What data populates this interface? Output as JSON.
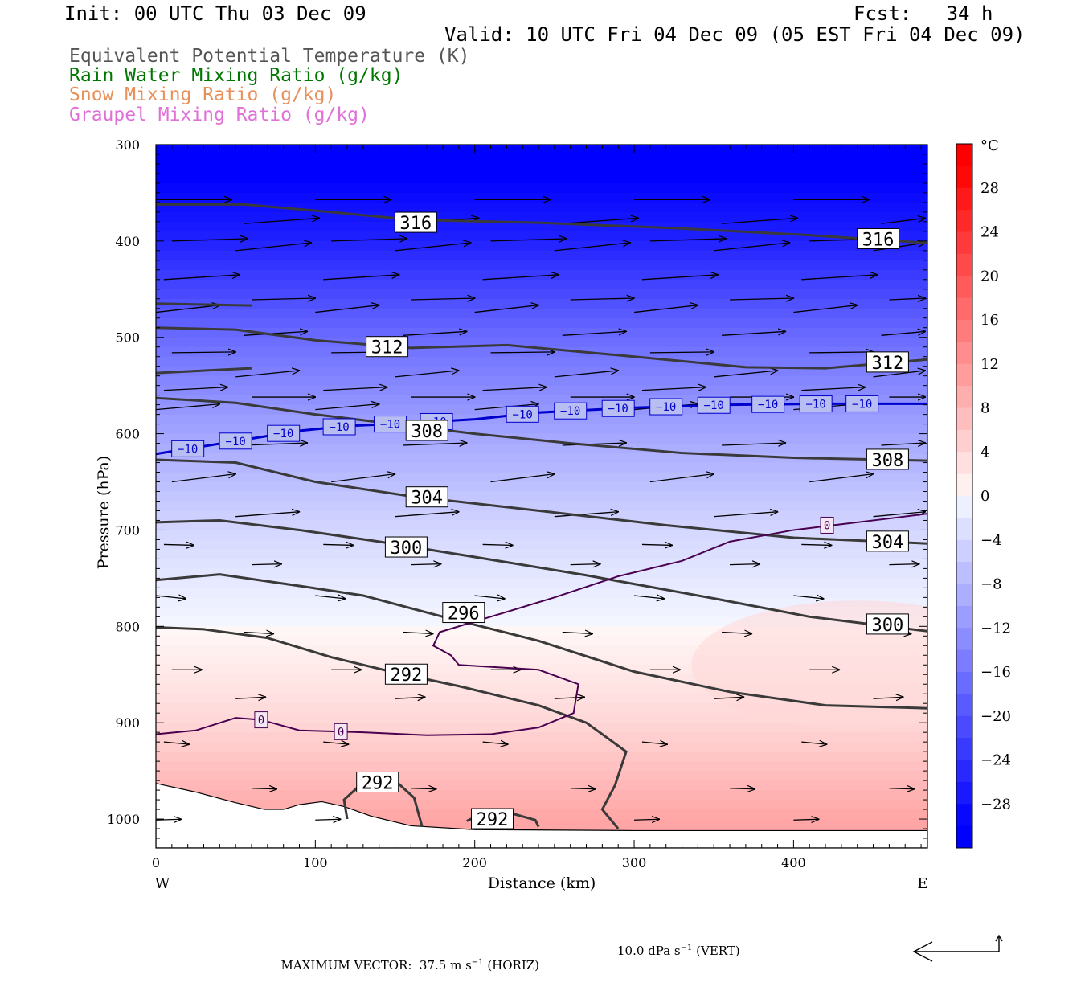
{
  "header": {
    "init": "Init: 00 UTC Thu 03 Dec 09",
    "fcst": "Fcst:   34 h",
    "valid": "Valid: 10 UTC Fri 04 Dec 09 (05 EST Fri 04 Dec 09)"
  },
  "fields": [
    {
      "label": "Equivalent Potential Temperature (K)",
      "color": "#555555"
    },
    {
      "label": "Rain Water Mixing Ratio (g/kg)",
      "color": "#007700"
    },
    {
      "label": "Snow Mixing Ratio (g/kg)",
      "color": "#e8905a"
    },
    {
      "label": "Graupel Mixing Ratio (g/kg)",
      "color": "#e070d8"
    }
  ],
  "chart_data": {
    "type": "heatmap",
    "title": "",
    "xlabel": "Distance (km)",
    "ylabel": "Pressure (hPa)",
    "xlim": [
      0,
      484
    ],
    "ylim": [
      1030,
      300
    ],
    "x_ticks": [
      0,
      100,
      200,
      300,
      400
    ],
    "y_ticks": [
      300,
      400,
      500,
      600,
      700,
      800,
      900,
      1000
    ],
    "x_end_labels": {
      "left": "W",
      "right": "E"
    },
    "colorbar": {
      "unit": "°C",
      "ticks": [
        28,
        24,
        20,
        16,
        12,
        8,
        4,
        0,
        -4,
        -8,
        -12,
        -16,
        -20,
        -24,
        -28
      ],
      "range": [
        -32,
        32
      ]
    },
    "temperature_field": [
      {
        "p": 300,
        "t": -32
      },
      {
        "p": 400,
        "t": -26
      },
      {
        "p": 500,
        "t": -17
      },
      {
        "p": 600,
        "t": -10
      },
      {
        "p": 700,
        "t": -4
      },
      {
        "p": 800,
        "t": 0
      },
      {
        "p": 900,
        "t": 4
      },
      {
        "p": 1000,
        "t": 10
      }
    ],
    "theta_e_contours": [
      {
        "value": 316,
        "label": "316",
        "points": [
          [
            0,
            362
          ],
          [
            55,
            362
          ],
          [
            110,
            370
          ],
          [
            160,
            378
          ],
          [
            240,
            381
          ],
          [
            330,
            387
          ],
          [
            410,
            394
          ],
          [
            484,
            402
          ]
        ]
      },
      {
        "value": 312,
        "label": "312",
        "points": [
          [
            0,
            490
          ],
          [
            50,
            492
          ],
          [
            100,
            503
          ],
          [
            160,
            511
          ],
          [
            220,
            508
          ],
          [
            300,
            520
          ],
          [
            370,
            531
          ],
          [
            420,
            532
          ],
          [
            484,
            523
          ]
        ]
      },
      {
        "value": 308,
        "label": "308",
        "points": [
          [
            0,
            563
          ],
          [
            50,
            568
          ],
          [
            100,
            580
          ],
          [
            150,
            590
          ],
          [
            200,
            600
          ],
          [
            260,
            610
          ],
          [
            330,
            620
          ],
          [
            400,
            625
          ],
          [
            484,
            628
          ]
        ]
      },
      {
        "value": 304,
        "label": "304",
        "points": [
          [
            0,
            627
          ],
          [
            50,
            630
          ],
          [
            100,
            650
          ],
          [
            160,
            665
          ],
          [
            230,
            678
          ],
          [
            320,
            695
          ],
          [
            400,
            708
          ],
          [
            484,
            714
          ]
        ]
      },
      {
        "value": 300,
        "label": "300",
        "points": [
          [
            0,
            692
          ],
          [
            40,
            690
          ],
          [
            90,
            700
          ],
          [
            140,
            712
          ],
          [
            200,
            728
          ],
          [
            270,
            747
          ],
          [
            350,
            771
          ],
          [
            410,
            790
          ],
          [
            484,
            805
          ]
        ]
      },
      {
        "value": 296,
        "label": "296",
        "points": [
          [
            0,
            752
          ],
          [
            40,
            746
          ],
          [
            90,
            758
          ],
          [
            130,
            768
          ],
          [
            180,
            790
          ],
          [
            240,
            815
          ],
          [
            300,
            847
          ],
          [
            360,
            868
          ],
          [
            420,
            882
          ],
          [
            484,
            885
          ]
        ]
      },
      {
        "value": 292,
        "label": "292",
        "points": [
          [
            0,
            801
          ],
          [
            30,
            803
          ],
          [
            70,
            812
          ],
          [
            110,
            832
          ],
          [
            150,
            848
          ],
          [
            190,
            862
          ],
          [
            240,
            882
          ],
          [
            270,
            900
          ],
          [
            295,
            930
          ],
          [
            288,
            965
          ],
          [
            280,
            990
          ],
          [
            290,
            1010
          ]
        ]
      },
      {
        "value": 292,
        "label": "292",
        "points": [
          [
            120,
            1000
          ],
          [
            118,
            980
          ],
          [
            128,
            965
          ],
          [
            140,
            963
          ],
          [
            152,
            963
          ],
          [
            162,
            978
          ],
          [
            167,
            1008
          ]
        ]
      },
      {
        "value": 292,
        "label": "292",
        "points": [
          [
            195,
            1002
          ],
          [
            205,
            994
          ],
          [
            225,
            995
          ],
          [
            238,
            1001
          ],
          [
            240,
            1008
          ]
        ]
      },
      {
        "value": 300,
        "label": "",
        "points": [
          [
            0,
            465
          ],
          [
            60,
            467
          ]
        ]
      },
      {
        "value": 300,
        "label": "",
        "points": [
          [
            0,
            537
          ],
          [
            60,
            532
          ]
        ]
      }
    ],
    "theta_e_labels": [
      {
        "text": "316",
        "x": 163,
        "p": 381
      },
      {
        "text": "316",
        "x": 453,
        "p": 398
      },
      {
        "text": "312",
        "x": 145,
        "p": 510
      },
      {
        "text": "312",
        "x": 459,
        "p": 526
      },
      {
        "text": "308",
        "x": 170,
        "p": 597
      },
      {
        "text": "308",
        "x": 459,
        "p": 627
      },
      {
        "text": "304",
        "x": 170,
        "p": 666
      },
      {
        "text": "304",
        "x": 459,
        "p": 712
      },
      {
        "text": "300",
        "x": 157,
        "p": 718
      },
      {
        "text": "300",
        "x": 459,
        "p": 798
      },
      {
        "text": "296",
        "x": 193,
        "p": 786
      },
      {
        "text": "292",
        "x": 157,
        "p": 850
      },
      {
        "text": "292",
        "x": 139,
        "p": 962
      },
      {
        "text": "292",
        "x": 211,
        "p": 1000
      }
    ],
    "isotherms": [
      {
        "value": -10,
        "color": "#0000cc",
        "label": "−10",
        "points": [
          [
            0,
            621
          ],
          [
            30,
            613
          ],
          [
            60,
            605
          ],
          [
            90,
            597
          ],
          [
            120,
            592
          ],
          [
            160,
            589
          ],
          [
            200,
            585
          ],
          [
            240,
            578
          ],
          [
            300,
            573
          ],
          [
            360,
            570
          ],
          [
            420,
            569
          ],
          [
            484,
            569
          ]
        ],
        "label_x": [
          20,
          50,
          80,
          115,
          147,
          176,
          230,
          260,
          290,
          320,
          350,
          384,
          414,
          443
        ]
      },
      {
        "value": 0,
        "color": "#4a0050",
        "label": "0",
        "points": [
          [
            0,
            912
          ],
          [
            25,
            908
          ],
          [
            50,
            895
          ],
          [
            66,
            897
          ],
          [
            90,
            908
          ],
          [
            130,
            910
          ],
          [
            170,
            913
          ],
          [
            210,
            912
          ],
          [
            240,
            905
          ],
          [
            262,
            890
          ],
          [
            265,
            860
          ],
          [
            240,
            845
          ],
          [
            190,
            840
          ],
          [
            185,
            830
          ],
          [
            174,
            820
          ],
          [
            178,
            806
          ],
          [
            210,
            790
          ],
          [
            250,
            770
          ],
          [
            290,
            748
          ],
          [
            330,
            732
          ],
          [
            360,
            712
          ],
          [
            400,
            700
          ],
          [
            430,
            694
          ],
          [
            460,
            688
          ],
          [
            484,
            683
          ]
        ],
        "label_x": [
          66,
          116,
          421
        ]
      }
    ],
    "surface": {
      "points": [
        [
          0,
          963
        ],
        [
          25,
          972
        ],
        [
          50,
          983
        ],
        [
          68,
          990
        ],
        [
          80,
          990
        ],
        [
          90,
          985
        ],
        [
          104,
          982
        ],
        [
          118,
          987
        ],
        [
          135,
          997
        ],
        [
          160,
          1007
        ],
        [
          200,
          1011
        ],
        [
          300,
          1012
        ],
        [
          484,
          1012
        ]
      ]
    },
    "wind_vectors": {
      "levels": [
        357,
        382,
        400,
        410,
        440,
        461,
        474,
        498,
        516,
        541,
        555,
        562,
        575,
        612,
        650,
        686,
        715,
        736,
        768,
        806,
        845,
        875,
        920,
        968,
        1001
      ],
      "u_max": "37.5",
      "w_max": "10.0"
    }
  },
  "footer": {
    "horiz_label": "MAXIMUM VECTOR:  37.5 m s",
    "horiz_unit": "(HORIZ)",
    "vert_label": "10.0 dPa s",
    "vert_unit": "(VERT)",
    "exp": "−1"
  }
}
